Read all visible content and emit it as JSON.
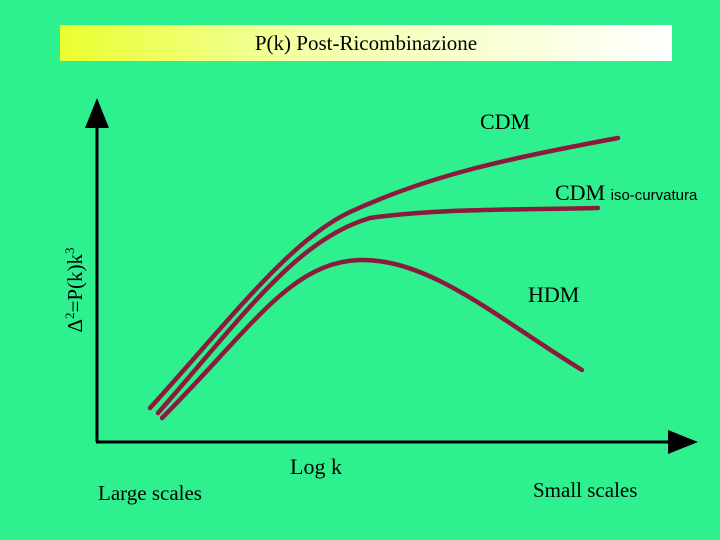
{
  "title": "P(k) Post-Ricombinazione",
  "ylabel": {
    "main": "Δ",
    "exp1": "2",
    "mid": "=P(k)k",
    "exp2": "3"
  },
  "xlabel": "Log k",
  "scale_left": "Large scales",
  "scale_right": "Small scales",
  "curves": [
    {
      "id": "cdm",
      "label": "CDM"
    },
    {
      "id": "cdm-iso",
      "label": "CDM",
      "sublabel": "iso-curvatura"
    },
    {
      "id": "hdm",
      "label": "HDM"
    }
  ],
  "colors": {
    "background": "#2ff08f",
    "curve": "#8b1a3c",
    "axis": "#000000"
  }
}
